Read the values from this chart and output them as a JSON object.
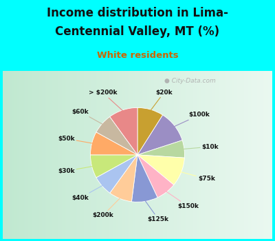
{
  "title_line1": "Income distribution in Lima-",
  "title_line2": "Centennial Valley, MT (%)",
  "subtitle": "White residents",
  "top_bg": "#00ffff",
  "chart_bg_left": "#c0e8d0",
  "chart_bg_right": "#eaf8f0",
  "watermark": "City-Data.com",
  "labels": [
    "$20k",
    "$100k",
    "$10k",
    "$75k",
    "$150k",
    "$125k",
    "$200k",
    "$40k",
    "$30k",
    "$50k",
    "$60k",
    "> $200k"
  ],
  "values": [
    9,
    11,
    6,
    10,
    7,
    9,
    8,
    7,
    8,
    8,
    7,
    10
  ],
  "colors": [
    "#c8a030",
    "#9b8ec4",
    "#b8d8a0",
    "#ffffaa",
    "#ffb3c6",
    "#8898d4",
    "#ffcc99",
    "#aac4f0",
    "#c8e87a",
    "#ffaa66",
    "#c8b8a0",
    "#e88888"
  ],
  "startangle": 90,
  "figsize": [
    4.0,
    3.5
  ],
  "dpi": 100
}
